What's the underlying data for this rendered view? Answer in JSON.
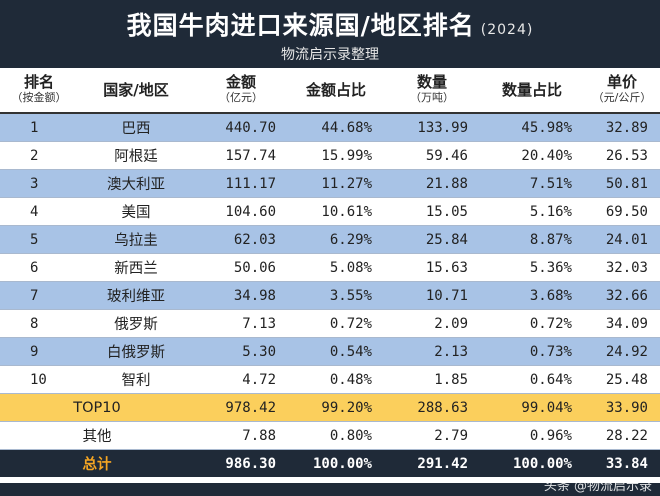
{
  "header": {
    "title": "我国牛肉进口来源国/地区排名",
    "year": "(2024)",
    "subtitle": "物流启示录整理"
  },
  "columns": [
    {
      "label": "排名",
      "unit": "（按金额）"
    },
    {
      "label": "国家/地区",
      "unit": ""
    },
    {
      "label": "金额",
      "unit": "（亿元）"
    },
    {
      "label": "金额占比",
      "unit": ""
    },
    {
      "label": "数量",
      "unit": "（万吨）"
    },
    {
      "label": "数量占比",
      "unit": ""
    },
    {
      "label": "单价",
      "unit": "（元/公斤）"
    }
  ],
  "rows": [
    {
      "rank": "1",
      "name": "巴西",
      "amount": "440.70",
      "amount_pct": "44.68%",
      "qty": "133.99",
      "qty_pct": "45.98%",
      "price": "32.89"
    },
    {
      "rank": "2",
      "name": "阿根廷",
      "amount": "157.74",
      "amount_pct": "15.99%",
      "qty": "59.46",
      "qty_pct": "20.40%",
      "price": "26.53"
    },
    {
      "rank": "3",
      "name": "澳大利亚",
      "amount": "111.17",
      "amount_pct": "11.27%",
      "qty": "21.88",
      "qty_pct": "7.51%",
      "price": "50.81"
    },
    {
      "rank": "4",
      "name": "美国",
      "amount": "104.60",
      "amount_pct": "10.61%",
      "qty": "15.05",
      "qty_pct": "5.16%",
      "price": "69.50"
    },
    {
      "rank": "5",
      "name": "乌拉圭",
      "amount": "62.03",
      "amount_pct": "6.29%",
      "qty": "25.84",
      "qty_pct": "8.87%",
      "price": "24.01"
    },
    {
      "rank": "6",
      "name": "新西兰",
      "amount": "50.06",
      "amount_pct": "5.08%",
      "qty": "15.63",
      "qty_pct": "5.36%",
      "price": "32.03"
    },
    {
      "rank": "7",
      "name": "玻利维亚",
      "amount": "34.98",
      "amount_pct": "3.55%",
      "qty": "10.71",
      "qty_pct": "3.68%",
      "price": "32.66"
    },
    {
      "rank": "8",
      "name": "俄罗斯",
      "amount": "7.13",
      "amount_pct": "0.72%",
      "qty": "2.09",
      "qty_pct": "0.72%",
      "price": "34.09"
    },
    {
      "rank": "9",
      "name": "白俄罗斯",
      "amount": "5.30",
      "amount_pct": "0.54%",
      "qty": "2.13",
      "qty_pct": "0.73%",
      "price": "24.92"
    },
    {
      "rank": "10",
      "name": "智利",
      "amount": "4.72",
      "amount_pct": "0.48%",
      "qty": "1.85",
      "qty_pct": "0.64%",
      "price": "25.48"
    }
  ],
  "top10": {
    "name": "TOP10",
    "amount": "978.42",
    "amount_pct": "99.20%",
    "qty": "288.63",
    "qty_pct": "99.04%",
    "price": "33.90"
  },
  "other": {
    "name": "其他",
    "amount": "7.88",
    "amount_pct": "0.80%",
    "qty": "2.79",
    "qty_pct": "0.96%",
    "price": "28.22"
  },
  "total": {
    "name": "总计",
    "amount": "986.30",
    "amount_pct": "100.00%",
    "qty": "291.42",
    "qty_pct": "100.00%",
    "price": "33.84"
  },
  "watermark": "头条 @物流启示录",
  "colors": {
    "header_bg": "#1f2a38",
    "row_blue": "#a8c3e6",
    "row_gold": "#fbcf5c",
    "total_label": "#f5a623"
  }
}
